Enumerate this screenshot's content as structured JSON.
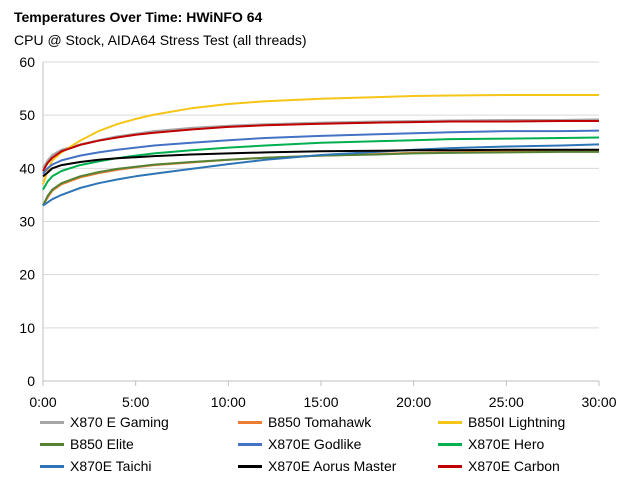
{
  "chart_data": {
    "type": "line",
    "title": "Temperatures Over Time: HWiNFO 64",
    "subtitle": "CPU @ Stock, AIDA64 Stress Test (all threads)",
    "xlabel": "",
    "ylabel": "",
    "xlim": [
      0,
      30
    ],
    "ylim": [
      0,
      60
    ],
    "x_ticks": [
      0,
      5,
      10,
      15,
      20,
      25,
      30
    ],
    "x_tick_labels": [
      "0:00",
      "5:00",
      "10:00",
      "15:00",
      "20:00",
      "25:00",
      "30:00"
    ],
    "y_ticks": [
      0,
      10,
      20,
      30,
      40,
      50,
      60
    ],
    "y_tick_labels": [
      "0",
      "10",
      "20",
      "30",
      "40",
      "50",
      "60"
    ],
    "grid": "horizontal",
    "legend_position": "bottom",
    "series": [
      {
        "name": "X870 E Gaming",
        "color": "#a6a6a6",
        "x": [
          0,
          0.25,
          0.5,
          1,
          2,
          3,
          4,
          5,
          6,
          8,
          10,
          12,
          15,
          18,
          20,
          22,
          25,
          28,
          30
        ],
        "y": [
          40,
          41.5,
          42.5,
          43.5,
          44.5,
          45.3,
          46,
          46.5,
          47,
          47.6,
          48,
          48.3,
          48.6,
          48.8,
          48.9,
          49,
          49.1,
          49.1,
          49.2
        ]
      },
      {
        "name": "B850 Tomahawk",
        "color": "#ed7d31",
        "x": [
          0,
          0.25,
          0.5,
          1,
          2,
          3,
          4,
          5,
          6,
          8,
          10,
          12,
          15,
          18,
          20,
          22,
          25,
          28,
          30
        ],
        "y": [
          33,
          34.5,
          35.8,
          37,
          38.3,
          39.1,
          39.7,
          40.2,
          40.6,
          41.1,
          41.6,
          42,
          42.4,
          42.7,
          42.9,
          43,
          43.2,
          43.3,
          43.4
        ]
      },
      {
        "name": "B850I Lightning",
        "color": "#f5c518",
        "x": [
          0,
          0.25,
          0.5,
          1,
          2,
          3,
          4,
          5,
          6,
          8,
          10,
          12,
          15,
          18,
          20,
          22,
          25,
          28,
          30
        ],
        "y": [
          37,
          39.5,
          41.5,
          43,
          45.2,
          47,
          48.3,
          49.3,
          50.1,
          51.3,
          52.1,
          52.6,
          53.1,
          53.4,
          53.6,
          53.7,
          53.8,
          53.8,
          53.8
        ]
      },
      {
        "name": "B850 Elite",
        "color": "#548235",
        "x": [
          0,
          0.25,
          0.5,
          1,
          2,
          3,
          4,
          5,
          6,
          8,
          10,
          12,
          15,
          18,
          20,
          22,
          25,
          28,
          30
        ],
        "y": [
          33,
          34.8,
          36,
          37.2,
          38.5,
          39.3,
          39.9,
          40.3,
          40.7,
          41.2,
          41.6,
          42,
          42.4,
          42.6,
          42.8,
          42.9,
          43,
          43.1,
          43.1
        ]
      },
      {
        "name": "X870E Godlike",
        "color": "#4472c4",
        "x": [
          0,
          0.25,
          0.5,
          1,
          2,
          3,
          4,
          5,
          6,
          8,
          10,
          12,
          15,
          18,
          20,
          22,
          25,
          28,
          30
        ],
        "y": [
          39,
          40,
          40.7,
          41.5,
          42.4,
          43,
          43.5,
          43.9,
          44.3,
          44.8,
          45.3,
          45.7,
          46.1,
          46.4,
          46.6,
          46.8,
          47,
          47,
          47.1
        ]
      },
      {
        "name": "X870E Hero",
        "color": "#00b050",
        "x": [
          0,
          0.25,
          0.5,
          1,
          2,
          3,
          4,
          5,
          6,
          8,
          10,
          12,
          15,
          18,
          20,
          22,
          25,
          28,
          30
        ],
        "y": [
          36,
          37.5,
          38.5,
          39.5,
          40.6,
          41.3,
          41.9,
          42.4,
          42.8,
          43.4,
          43.9,
          44.3,
          44.8,
          45.1,
          45.3,
          45.5,
          45.6,
          45.7,
          45.8
        ]
      },
      {
        "name": "X870E Taichi",
        "color": "#2e75b6",
        "x": [
          0,
          0.25,
          0.5,
          1,
          2,
          3,
          4,
          5,
          6,
          8,
          10,
          12,
          15,
          18,
          20,
          22,
          25,
          28,
          30
        ],
        "y": [
          33,
          33.6,
          34.2,
          35,
          36.3,
          37.2,
          37.9,
          38.5,
          39,
          39.9,
          40.8,
          41.6,
          42.5,
          43.1,
          43.5,
          43.8,
          44.1,
          44.3,
          44.5
        ]
      },
      {
        "name": "X870E Aorus Master",
        "color": "#000000",
        "x": [
          0,
          0.25,
          0.5,
          1,
          2,
          3,
          4,
          5,
          6,
          8,
          10,
          12,
          15,
          18,
          20,
          22,
          25,
          28,
          30
        ],
        "y": [
          38.5,
          39.2,
          40,
          40.6,
          41.2,
          41.6,
          41.9,
          42.1,
          42.3,
          42.6,
          42.8,
          43,
          43.2,
          43.3,
          43.4,
          43.4,
          43.5,
          43.5,
          43.5
        ]
      },
      {
        "name": "X870E Carbon",
        "color": "#c00000",
        "x": [
          0,
          0.25,
          0.5,
          1,
          2,
          3,
          4,
          5,
          6,
          8,
          10,
          12,
          15,
          18,
          20,
          22,
          25,
          28,
          30
        ],
        "y": [
          39.5,
          41,
          42,
          43.2,
          44.4,
          45.2,
          45.8,
          46.3,
          46.7,
          47.3,
          47.8,
          48.1,
          48.4,
          48.6,
          48.7,
          48.8,
          48.8,
          48.9,
          48.9
        ]
      }
    ]
  }
}
